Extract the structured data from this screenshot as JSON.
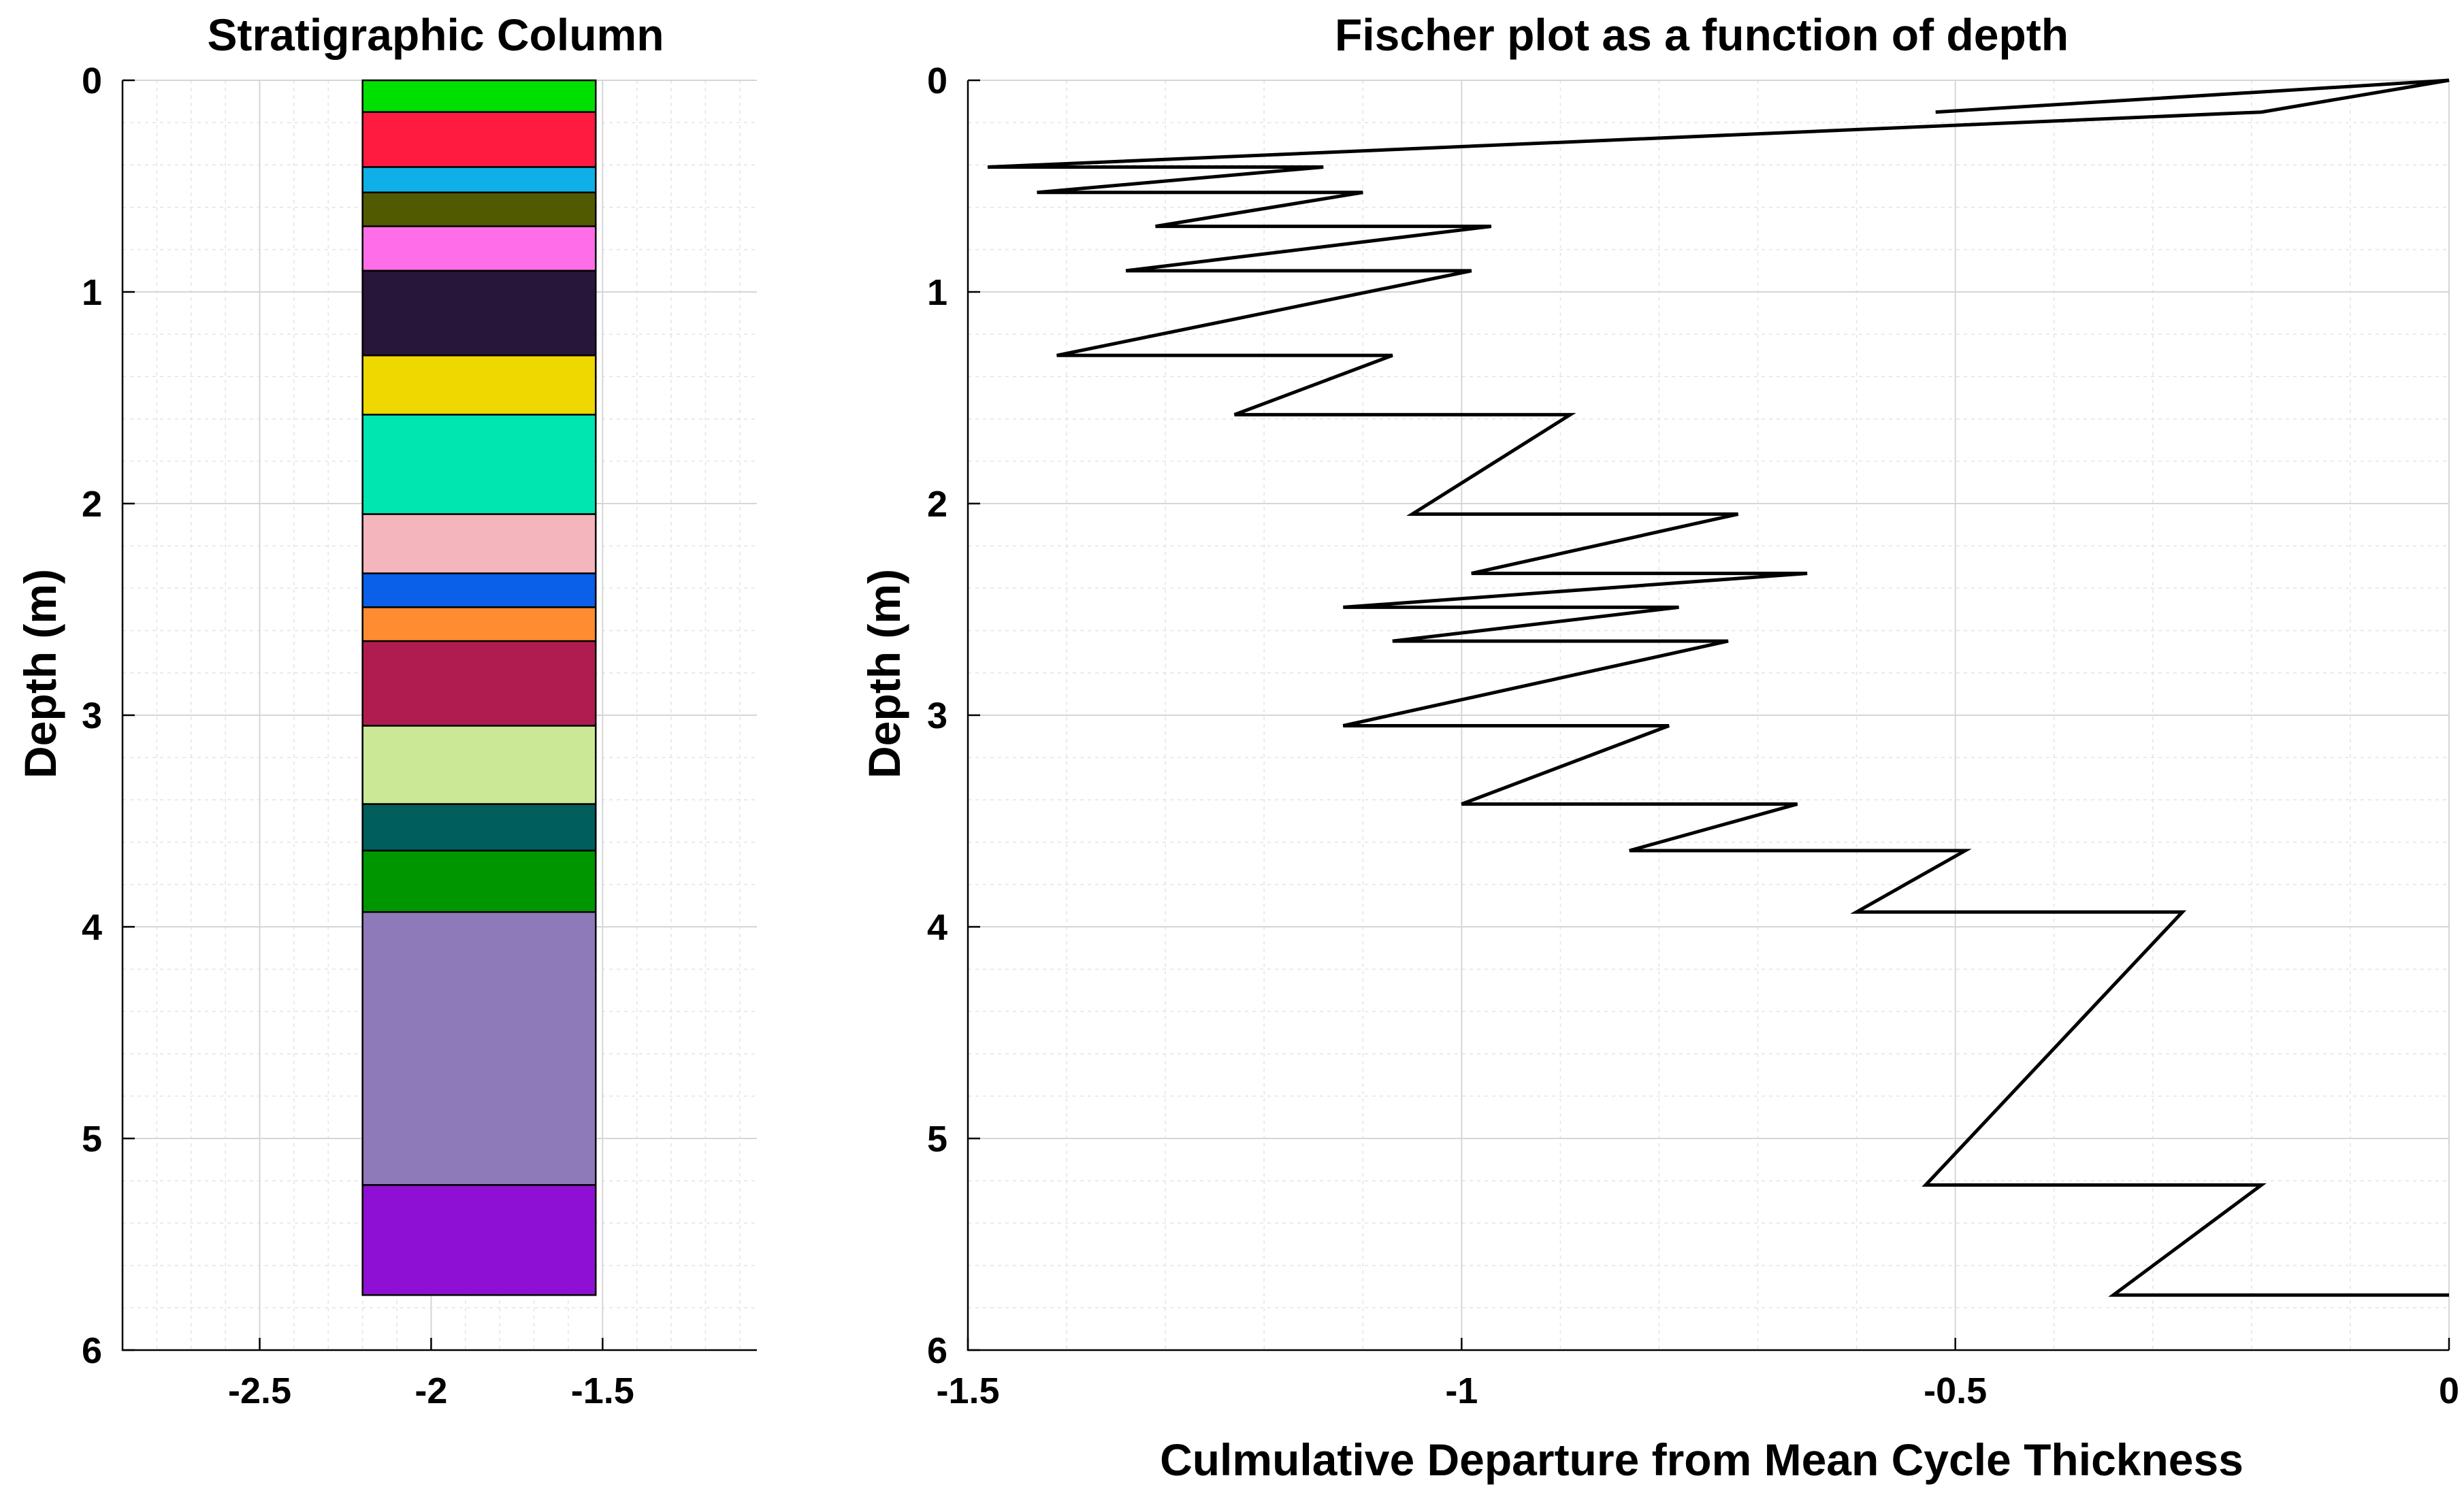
{
  "chart_data": [
    {
      "type": "bar",
      "title": "Stratigraphic Column",
      "xlabel": "",
      "ylabel": "Depth (m)",
      "xlim": [
        -2.9,
        -1.05
      ],
      "ylim": [
        0,
        6
      ],
      "y_reversed": true,
      "x_ticks": [
        -2.5,
        -2,
        -1.5
      ],
      "y_ticks": [
        0,
        1,
        2,
        3,
        4,
        5,
        6
      ],
      "x_tick_labels": [
        "-2.5",
        "-2",
        "-1.5"
      ],
      "y_tick_labels": [
        "0",
        "1",
        "2",
        "3",
        "4",
        "5",
        "6"
      ],
      "column_x_range": [
        -2.2,
        -1.52
      ],
      "beds": [
        {
          "top": 0.0,
          "bottom": 0.15,
          "color": "#00e000"
        },
        {
          "top": 0.15,
          "bottom": 0.41,
          "color": "#ff1a40"
        },
        {
          "top": 0.41,
          "bottom": 0.53,
          "color": "#0fb0e8"
        },
        {
          "top": 0.53,
          "bottom": 0.69,
          "color": "#525a00"
        },
        {
          "top": 0.69,
          "bottom": 0.9,
          "color": "#ff6ee8"
        },
        {
          "top": 0.9,
          "bottom": 1.3,
          "color": "#28163a"
        },
        {
          "top": 1.3,
          "bottom": 1.58,
          "color": "#eed800"
        },
        {
          "top": 1.58,
          "bottom": 2.05,
          "color": "#00e6b0"
        },
        {
          "top": 2.05,
          "bottom": 2.33,
          "color": "#f5b5bd"
        },
        {
          "top": 2.33,
          "bottom": 2.49,
          "color": "#0a60e8"
        },
        {
          "top": 2.49,
          "bottom": 2.65,
          "color": "#ff8c30"
        },
        {
          "top": 2.65,
          "bottom": 3.05,
          "color": "#b01c50"
        },
        {
          "top": 3.05,
          "bottom": 3.42,
          "color": "#cae896"
        },
        {
          "top": 3.42,
          "bottom": 3.64,
          "color": "#005e5c"
        },
        {
          "top": 3.64,
          "bottom": 3.93,
          "color": "#009600"
        },
        {
          "top": 3.93,
          "bottom": 5.22,
          "color": "#8e7ab8"
        },
        {
          "top": 5.22,
          "bottom": 5.74,
          "color": "#8e10d4"
        }
      ]
    },
    {
      "type": "line",
      "title": "Fischer plot as a function of depth",
      "xlabel": "Culmulative Departure from Mean Cycle Thickness",
      "ylabel": "Depth (m)",
      "xlim": [
        -1.5,
        0
      ],
      "ylim": [
        0,
        6
      ],
      "y_reversed": true,
      "x_ticks": [
        -1.5,
        -1,
        -0.5,
        0
      ],
      "y_ticks": [
        0,
        1,
        2,
        3,
        4,
        5,
        6
      ],
      "x_tick_labels": [
        "-1.5",
        "-1",
        "-0.5",
        "0"
      ],
      "y_tick_labels": [
        "0",
        "1",
        "2",
        "3",
        "4",
        "5",
        "6"
      ],
      "series": [
        {
          "name": "Fischer plot",
          "color": "#000000",
          "points": [
            [
              -0.52,
              0.15
            ],
            [
              0.0,
              0.0
            ],
            [
              -0.19,
              0.15
            ],
            [
              -1.48,
              0.41
            ],
            [
              -1.14,
              0.41
            ],
            [
              -1.43,
              0.53
            ],
            [
              -1.1,
              0.53
            ],
            [
              -1.31,
              0.69
            ],
            [
              -0.97,
              0.69
            ],
            [
              -1.34,
              0.9
            ],
            [
              -0.99,
              0.9
            ],
            [
              -1.41,
              1.3
            ],
            [
              -1.07,
              1.3
            ],
            [
              -1.23,
              1.58
            ],
            [
              -0.89,
              1.58
            ],
            [
              -1.05,
              2.05
            ],
            [
              -0.72,
              2.05
            ],
            [
              -0.99,
              2.33
            ],
            [
              -0.65,
              2.33
            ],
            [
              -1.12,
              2.49
            ],
            [
              -0.78,
              2.49
            ],
            [
              -1.07,
              2.65
            ],
            [
              -0.73,
              2.65
            ],
            [
              -1.12,
              3.05
            ],
            [
              -0.79,
              3.05
            ],
            [
              -1.0,
              3.42
            ],
            [
              -0.66,
              3.42
            ],
            [
              -0.83,
              3.64
            ],
            [
              -0.49,
              3.64
            ],
            [
              -0.6,
              3.93
            ],
            [
              -0.27,
              3.93
            ],
            [
              -0.53,
              5.22
            ],
            [
              -0.19,
              5.22
            ],
            [
              -0.34,
              5.74
            ],
            [
              0.0,
              5.74
            ]
          ]
        }
      ]
    }
  ]
}
